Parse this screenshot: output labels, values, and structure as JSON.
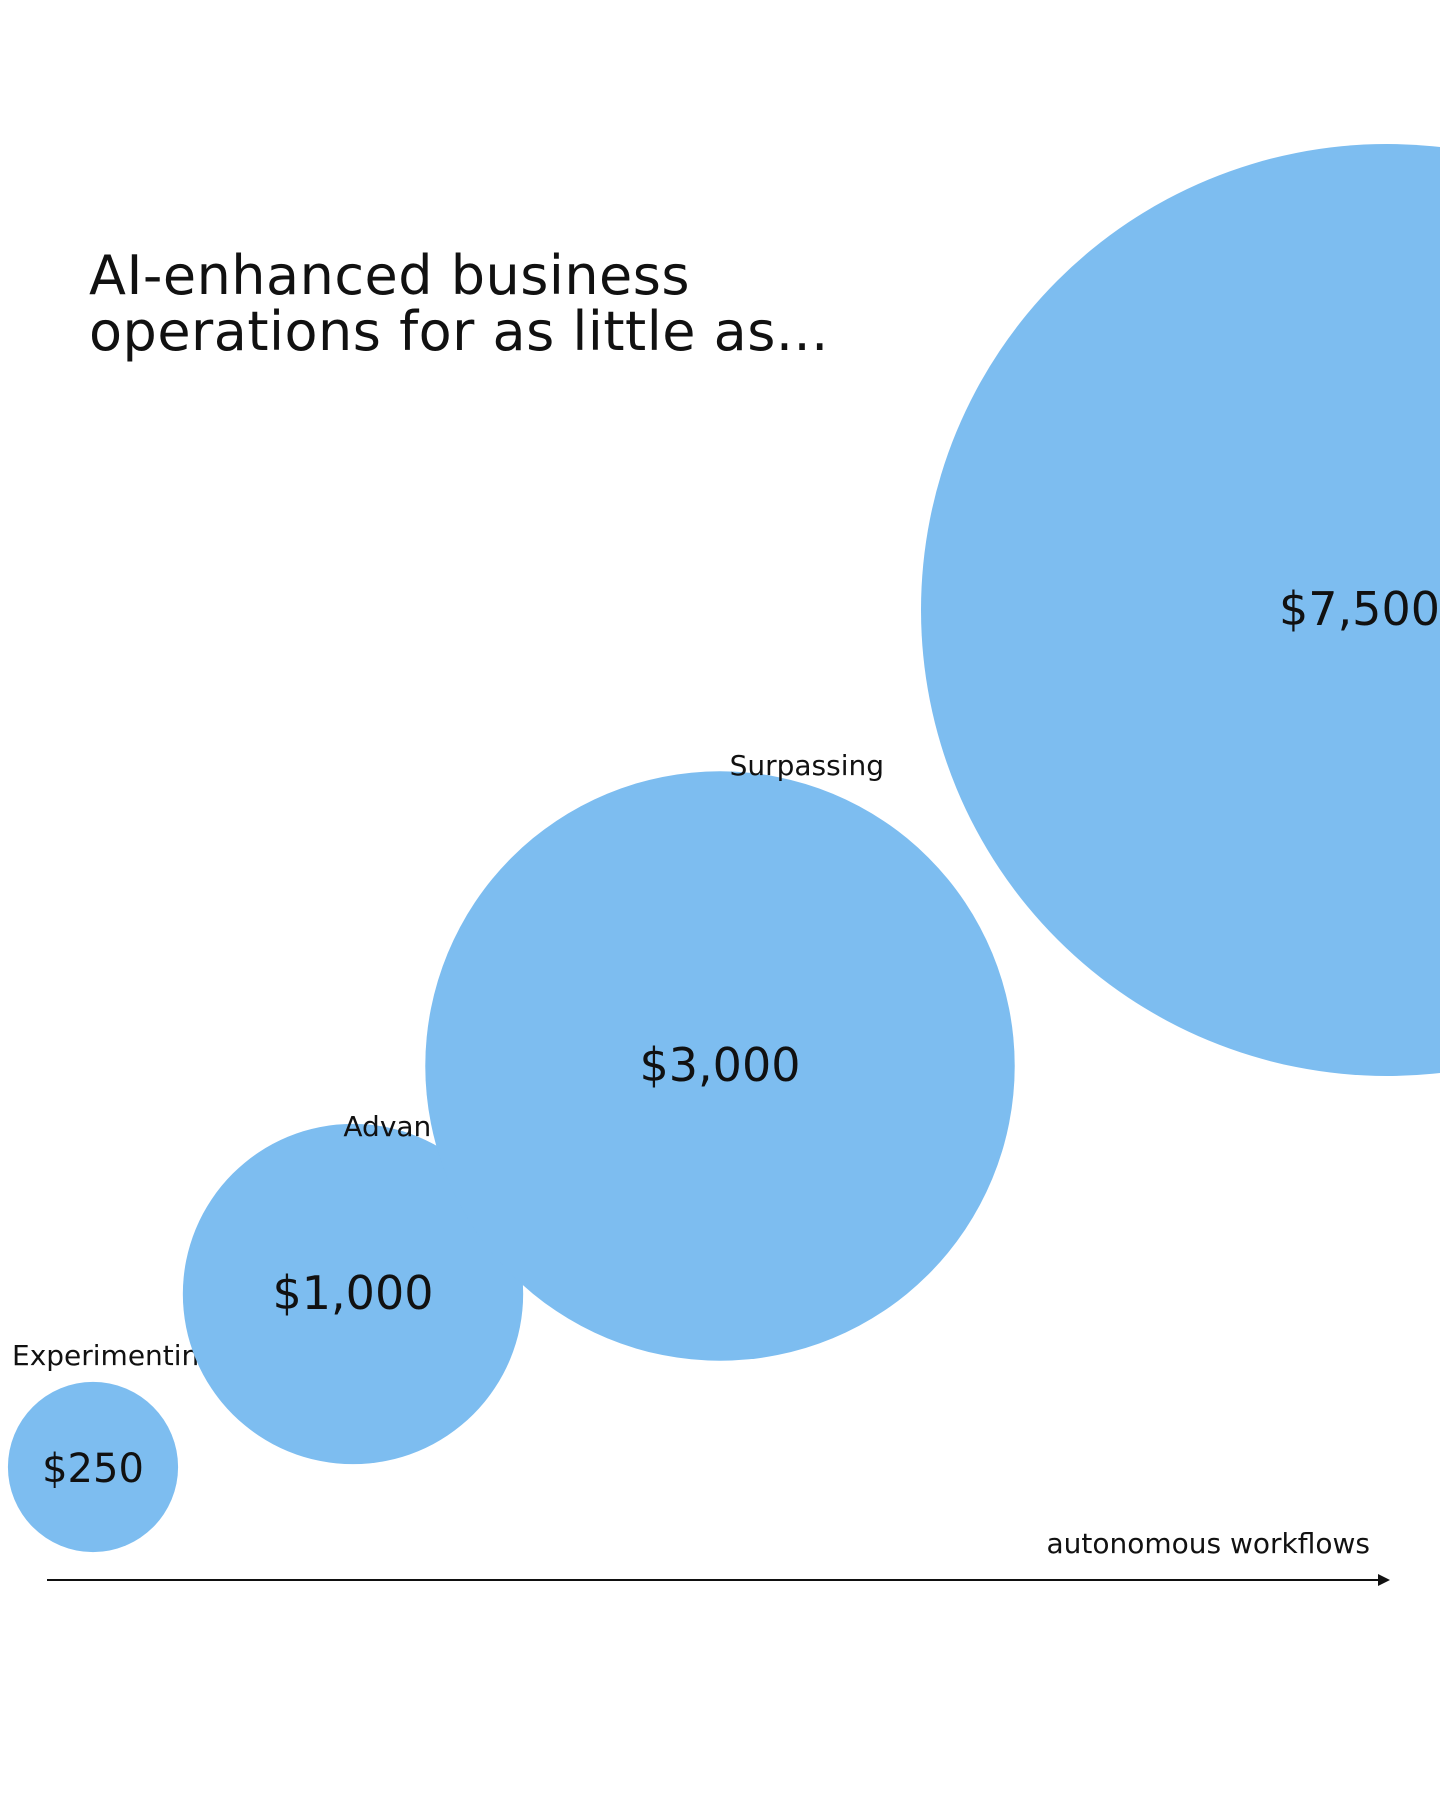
{
  "headline": {
    "line1": "AI-enhanced business",
    "line2": "operations for as little as..."
  },
  "chart_data": {
    "type": "bubble",
    "xlabel": "autonomous workflows",
    "bubble_color": "#7dbdf0",
    "points": [
      {
        "label": "Experimenting",
        "value": 250,
        "value_label": "$250"
      },
      {
        "label": "Advancing",
        "value": 1000,
        "value_label": "$1,000"
      },
      {
        "label": "",
        "value": 3000,
        "value_label": "$3,000"
      },
      {
        "label": "Surpassing",
        "value": 7500,
        "value_label": "$7,500"
      }
    ]
  }
}
